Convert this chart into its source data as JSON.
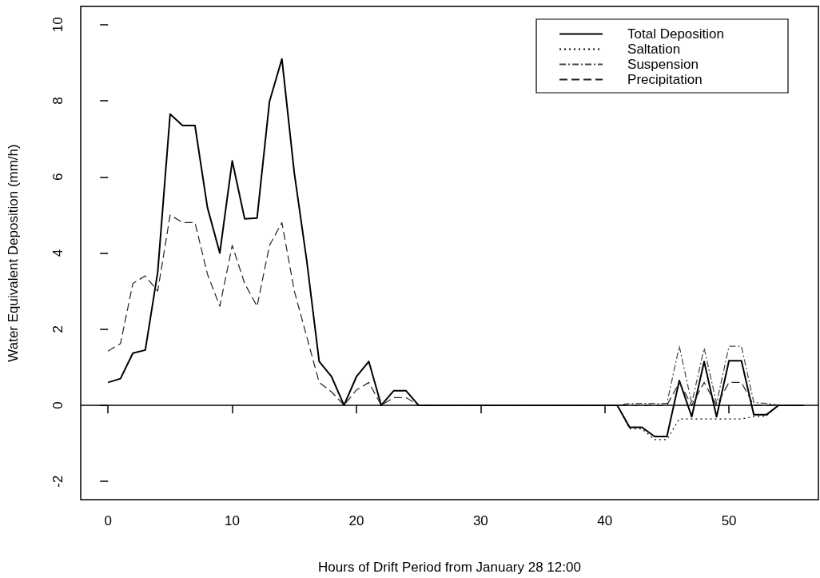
{
  "chart_data": {
    "type": "line",
    "xlabel": "Hours of Drift Period from January 28 12:00",
    "ylabel": "Water Equivalent Deposition (mm/h)",
    "x": [
      0,
      1,
      2,
      3,
      4,
      5,
      6,
      7,
      8,
      9,
      10,
      11,
      12,
      13,
      14,
      15,
      16,
      17,
      18,
      19,
      20,
      21,
      22,
      23,
      24,
      25,
      26,
      27,
      28,
      29,
      30,
      31,
      32,
      33,
      34,
      35,
      36,
      37,
      38,
      39,
      40,
      41,
      42,
      43,
      44,
      45,
      46,
      47,
      48,
      49,
      50,
      51,
      52,
      53,
      54,
      55,
      56
    ],
    "series": [
      {
        "name": "Total Deposition",
        "color": "#000000",
        "line_style": "solid",
        "values": [
          0.6,
          0.7,
          1.37,
          1.45,
          3.5,
          7.65,
          7.35,
          7.35,
          5.2,
          4.0,
          6.42,
          4.9,
          4.92,
          7.98,
          9.1,
          6.1,
          3.8,
          1.15,
          0.75,
          0,
          0.75,
          1.15,
          0,
          0.38,
          0.38,
          0,
          0,
          0,
          0,
          0,
          0,
          0,
          0,
          0,
          0,
          0,
          0,
          0,
          0,
          0,
          0,
          0,
          -0.58,
          -0.58,
          -0.82,
          -0.82,
          0.65,
          -0.3,
          1.15,
          -0.3,
          1.17,
          1.17,
          -0.25,
          -0.25,
          0,
          0,
          0
        ]
      },
      {
        "name": "Saltation",
        "color": "#000000",
        "line_style": "dotted",
        "values": [
          null,
          null,
          null,
          null,
          null,
          null,
          null,
          null,
          null,
          null,
          null,
          null,
          null,
          null,
          null,
          null,
          null,
          null,
          null,
          null,
          null,
          null,
          null,
          null,
          null,
          0,
          0,
          0,
          0,
          0,
          0,
          0,
          0,
          0,
          0,
          0,
          0,
          0,
          0,
          0,
          0,
          0,
          -0.62,
          -0.62,
          -0.9,
          -0.9,
          -0.36,
          -0.36,
          -0.36,
          -0.36,
          -0.36,
          -0.36,
          -0.3,
          -0.28,
          0,
          0,
          0
        ]
      },
      {
        "name": "Suspension",
        "color": "#444444",
        "line_style": "dashdot",
        "values": [
          null,
          null,
          null,
          null,
          null,
          null,
          null,
          null,
          null,
          null,
          null,
          null,
          null,
          null,
          null,
          null,
          null,
          null,
          null,
          null,
          null,
          null,
          null,
          null,
          null,
          0,
          0,
          0,
          0,
          0,
          0,
          0,
          0,
          0,
          0,
          0,
          0,
          0,
          0,
          0,
          0,
          0,
          0.05,
          0.05,
          0.05,
          0.05,
          1.55,
          0.05,
          1.5,
          0.05,
          1.55,
          1.55,
          0.07,
          0.05,
          0,
          0,
          0
        ]
      },
      {
        "name": "Precipitation",
        "color": "#222222",
        "line_style": "dashed",
        "values": [
          1.42,
          1.62,
          3.2,
          3.4,
          3.0,
          5.0,
          4.8,
          4.8,
          3.45,
          2.6,
          4.2,
          3.2,
          2.6,
          4.2,
          4.8,
          3.0,
          1.8,
          0.6,
          0.35,
          0,
          0.4,
          0.6,
          0,
          0.2,
          0.2,
          0,
          0,
          0,
          0,
          0,
          0,
          0,
          0,
          0,
          0,
          0,
          0,
          0,
          0,
          0,
          0,
          0,
          0,
          0,
          0,
          0,
          0.6,
          0,
          0.6,
          0,
          0.6,
          0.6,
          0,
          0,
          0,
          0,
          0
        ]
      }
    ],
    "xlim": [
      -2.2,
      57.2
    ],
    "xticks": [
      0,
      10,
      20,
      30,
      40,
      50
    ],
    "ylim": [
      -2.48,
      10.48
    ],
    "yticks": [
      -2,
      0,
      2,
      4,
      6,
      8,
      10
    ],
    "ref_lines": [
      {
        "axis": "y",
        "value": 0,
        "color": "#000000"
      }
    ],
    "grid": false,
    "legend": "top right",
    "marker": "none"
  }
}
